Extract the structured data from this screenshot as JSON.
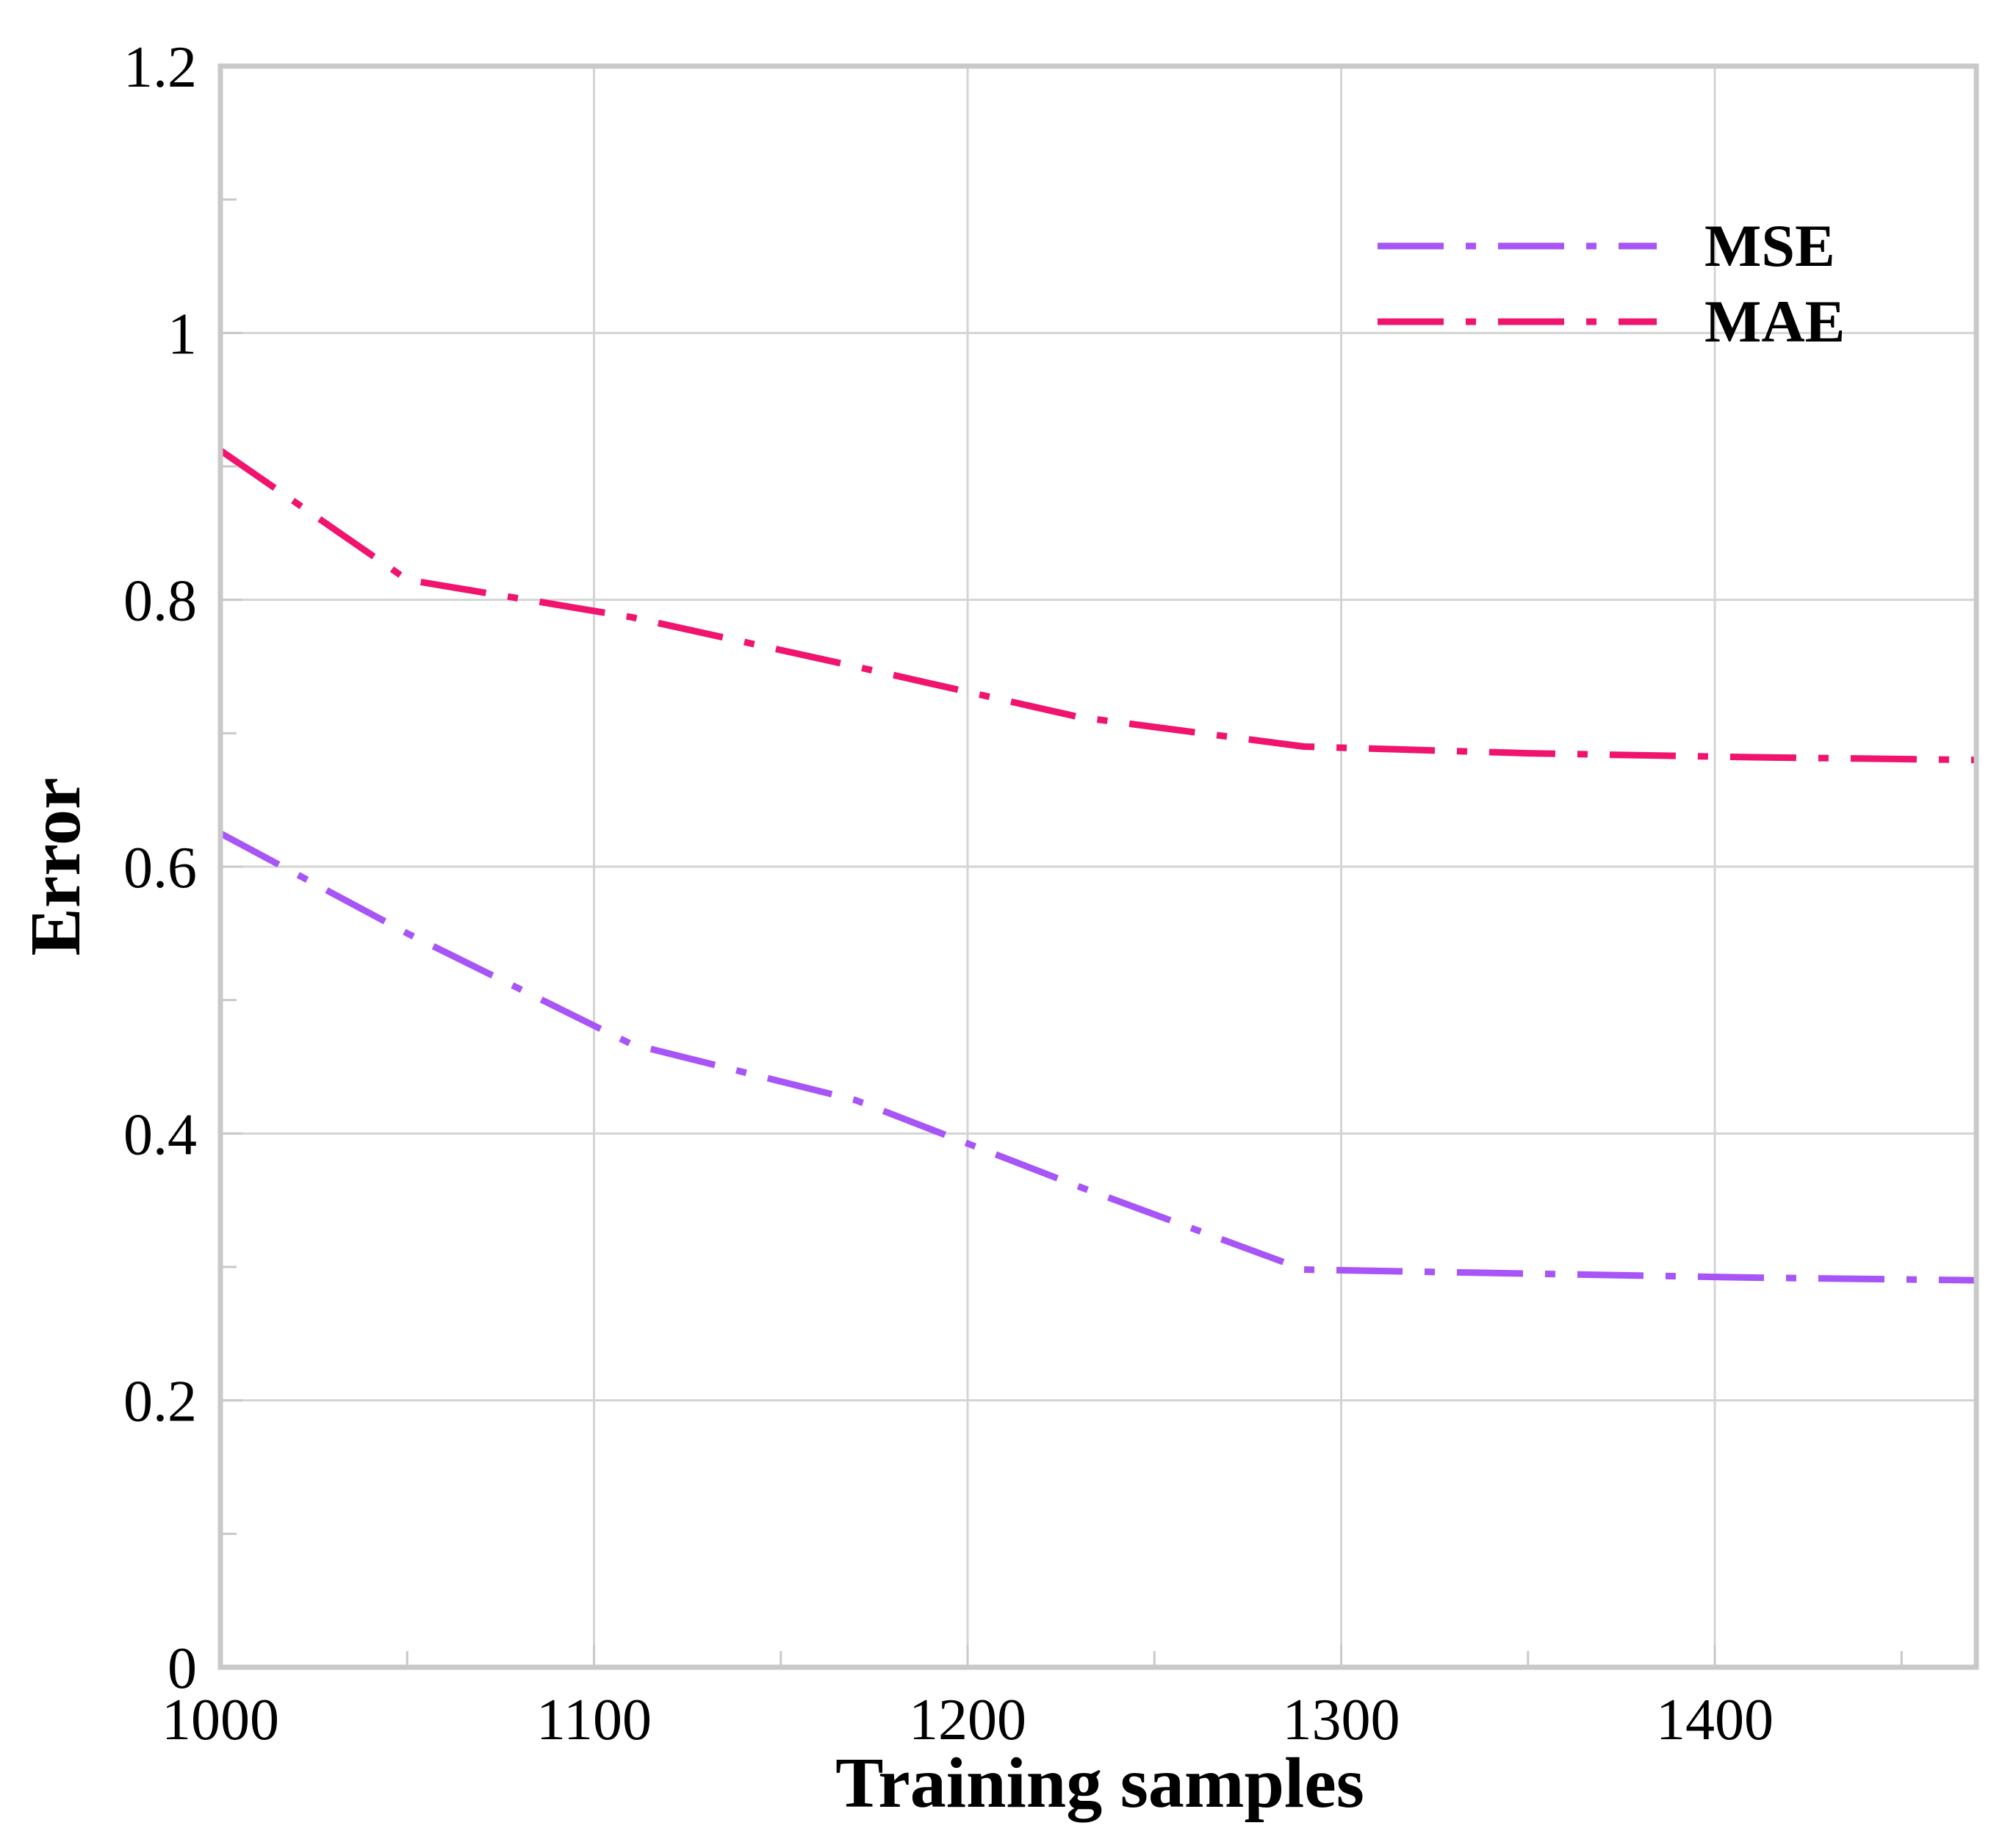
{
  "chart_data": {
    "type": "line",
    "title": "",
    "xlabel": "Training samples",
    "ylabel": "Error",
    "xlim": [
      1000,
      1470
    ],
    "ylim": [
      0,
      1.2
    ],
    "x_major_ticks": [
      1000,
      1100,
      1200,
      1300,
      1400
    ],
    "x_minor_ticks": [
      1050,
      1150,
      1250,
      1350,
      1450
    ],
    "y_major_ticks": [
      0,
      0.2,
      0.4,
      0.6,
      0.8,
      1,
      1.2
    ],
    "y_minor_ticks": [
      0.1,
      0.3,
      0.5,
      0.7,
      0.9,
      1.1
    ],
    "x_tick_labels": [
      "1000",
      "1100",
      "1200",
      "1300",
      "1400"
    ],
    "y_tick_labels": [
      "0",
      "0.2",
      "0.4",
      "0.6",
      "0.8",
      "1",
      "1.2"
    ],
    "grid": true,
    "legend_position": "top-right",
    "series": [
      {
        "name": "MSE",
        "color": "#a855f7",
        "x": [
          1000,
          1050,
          1110,
          1170,
          1230,
          1290,
          1350,
          1410,
          1470
        ],
        "y": [
          0.625,
          0.55,
          0.467,
          0.425,
          0.36,
          0.298,
          0.295,
          0.292,
          0.29
        ]
      },
      {
        "name": "MAE",
        "color": "#f0146e",
        "x": [
          1000,
          1050,
          1110,
          1170,
          1230,
          1290,
          1350,
          1410,
          1470
        ],
        "y": [
          0.912,
          0.815,
          0.787,
          0.75,
          0.712,
          0.69,
          0.685,
          0.682,
          0.68
        ]
      }
    ]
  }
}
